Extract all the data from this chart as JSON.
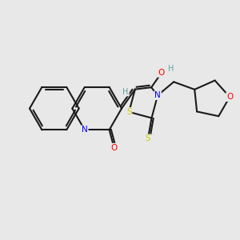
{
  "background_color": "#e8e8e8",
  "atom_colors": {
    "N": "#0000ff",
    "O": "#ff0000",
    "S": "#cccc00",
    "H_label": "#5f9ea0",
    "C": "#1a1a1a"
  },
  "bond_color": "#1a1a1a",
  "figsize": [
    3.0,
    3.0
  ],
  "dpi": 100,
  "xlim": [
    -3.5,
    3.8
  ],
  "ylim": [
    -2.8,
    2.5
  ]
}
